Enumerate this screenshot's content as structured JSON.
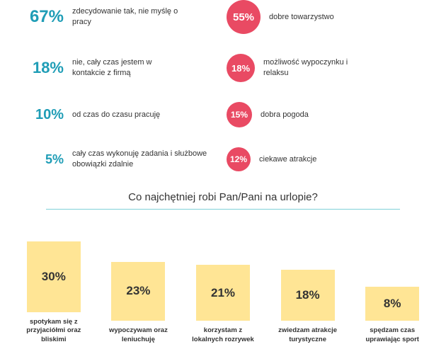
{
  "top_rows": [
    {
      "left": {
        "pct": "67%",
        "font_size": 24,
        "text": "zdecydowanie tak, nie myślę o pracy"
      },
      "right": {
        "pct": "55%",
        "circle_size": 48,
        "circle_font": 15,
        "text": "dobre towarzystwo"
      }
    },
    {
      "left": {
        "pct": "18%",
        "font_size": 22,
        "text": "nie, cały czas jestem w kontakcie z firmą"
      },
      "right": {
        "pct": "18%",
        "circle_size": 40,
        "circle_font": 13,
        "text": "możliwość wypoczynku i relaksu"
      }
    },
    {
      "left": {
        "pct": "10%",
        "font_size": 20,
        "text": "od czas do czasu pracuję"
      },
      "right": {
        "pct": "15%",
        "circle_size": 36,
        "circle_font": 12,
        "text": "dobra pogoda"
      }
    },
    {
      "left": {
        "pct": "5%",
        "font_size": 18,
        "text": "cały czas wykonuję zadania i służbowe obowiązki zdalnie"
      },
      "right": {
        "pct": "12%",
        "circle_size": 34,
        "circle_font": 12,
        "text": "ciekawe atrakcje"
      }
    }
  ],
  "section_title": "Co najchętniej robi Pan/Pani na urlopie?",
  "bars": {
    "max_height": 100,
    "items": [
      {
        "pct": "30%",
        "value": 30,
        "caption": "spotykam się z przyjaciółmi oraz bliskimi"
      },
      {
        "pct": "23%",
        "value": 23,
        "caption": "wypoczywam oraz leniuchuję"
      },
      {
        "pct": "21%",
        "value": 21,
        "caption": "korzystam z lokalnych rozrywek"
      },
      {
        "pct": "18%",
        "value": 18,
        "caption": "zwiedzam atrakcje turystyczne"
      },
      {
        "pct": "8%",
        "value": 8,
        "caption": "spędzam czas uprawiając sport"
      }
    ]
  },
  "colors": {
    "teal": "#1f9db6",
    "circle_bg": "#e94a63",
    "bar_bg": "#ffe595",
    "rule": "#7fd1d8",
    "text": "#333333",
    "background": "#ffffff"
  }
}
